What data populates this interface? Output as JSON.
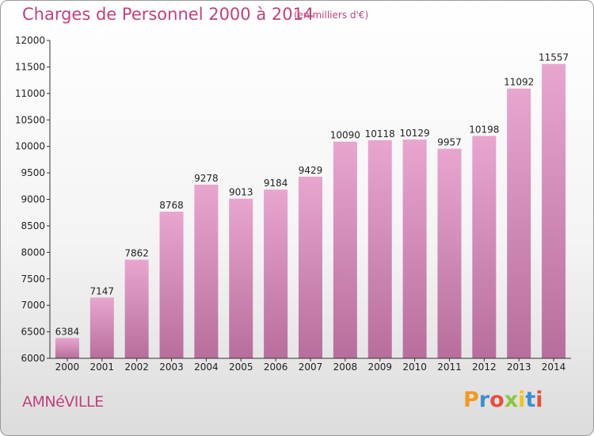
{
  "header": {
    "title": "Charges de Personnel 2000 à 2014",
    "subtitle": "(en milliers d'€)"
  },
  "footer": {
    "city": "AMNéVILLE",
    "logo": {
      "letters": [
        "P",
        "r",
        "o",
        "x",
        "i",
        "t",
        "i"
      ],
      "colors": [
        "#f39a1e",
        "#3a8fd6",
        "#e94e3c",
        "#8cc63f",
        "#f5c315",
        "#3a8fd6",
        "#e94e3c"
      ]
    }
  },
  "colors": {
    "bar_top": "#e8a6cf",
    "bar_bottom": "#b86e9c",
    "text_accent": "#c2417c"
  },
  "chart_data": {
    "type": "bar",
    "categories": [
      "2000",
      "2001",
      "2002",
      "2003",
      "2004",
      "2005",
      "2006",
      "2007",
      "2008",
      "2009",
      "2010",
      "2011",
      "2012",
      "2013",
      "2014"
    ],
    "values": [
      6384,
      7147,
      7862,
      8768,
      9278,
      9013,
      9184,
      9429,
      10090,
      10118,
      10129,
      9957,
      10198,
      11092,
      11557
    ],
    "data_labels": [
      "6384",
      "7147",
      "7862",
      "8768",
      "9278",
      "9013",
      "9184",
      "9429",
      "10090",
      "10118",
      "10129",
      "9957",
      "10198",
      "11092",
      "11557"
    ],
    "yticks": [
      6000,
      6500,
      7000,
      7500,
      8000,
      8500,
      9000,
      9500,
      10000,
      10500,
      11000,
      11500,
      12000
    ],
    "ylim": [
      6000,
      12000
    ],
    "grid": false,
    "title": "Charges de Personnel 2000 à 2014",
    "xlabel": "",
    "ylabel": ""
  }
}
